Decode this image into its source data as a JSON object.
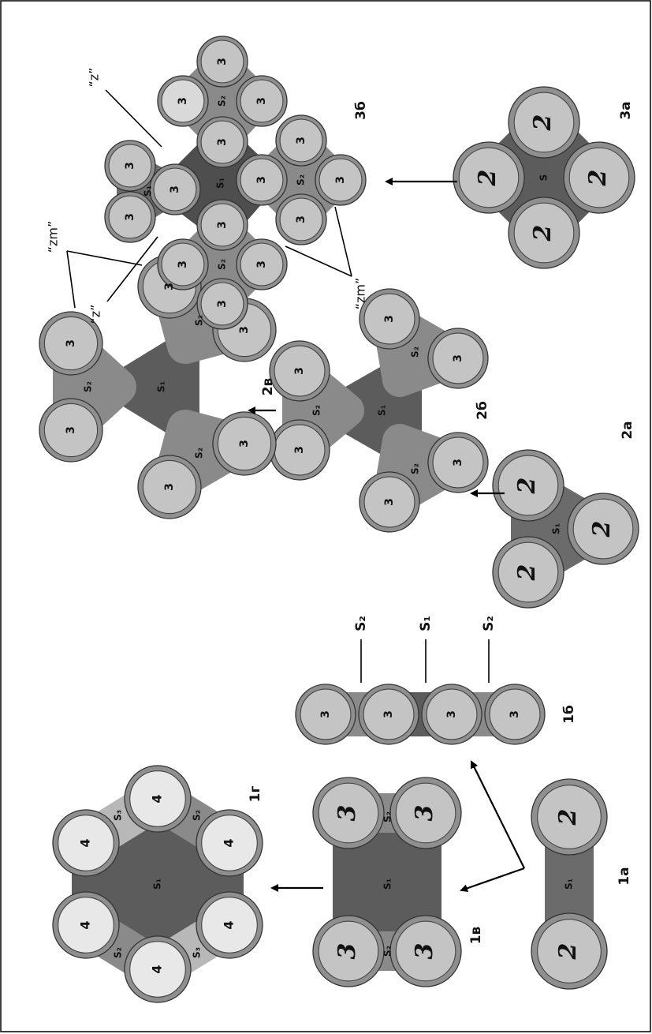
{
  "diagrams": [
    {
      "label": "1а",
      "circles": [
        "2",
        "2"
      ],
      "regions": [
        "S₁"
      ]
    },
    {
      "label": "1б",
      "circles": [
        "3",
        "3",
        "3",
        "3"
      ],
      "regions": [
        "S₂",
        "S₁",
        "S₂"
      ]
    },
    {
      "label": "1в",
      "circles": [
        "3",
        "3",
        "3",
        "3"
      ],
      "regions": [
        "S₂",
        "S₁",
        "S₂"
      ]
    },
    {
      "label": "1г",
      "circles": [
        "4",
        "4",
        "4",
        "4",
        "4",
        "4"
      ],
      "regions": [
        "S₃",
        "S₂",
        "S₁",
        "S₂",
        "S₃"
      ]
    },
    {
      "label": "2а",
      "circles": [
        "2",
        "2",
        "2"
      ],
      "regions": [
        "S₁"
      ]
    },
    {
      "label": "2б",
      "circles": [
        "3",
        "3",
        "3",
        "3",
        "3",
        "3"
      ],
      "regions": [
        "S₂",
        "S₂",
        "S₂",
        "S₁"
      ]
    },
    {
      "label": "2в",
      "circles": [
        "3",
        "3",
        "3",
        "3",
        "3",
        "3"
      ],
      "regions": [
        "S₂",
        "S₂",
        "S₂",
        "S₁"
      ],
      "annotations": [
        "“zm”"
      ]
    },
    {
      "label": "3а",
      "circles": [
        "2",
        "2",
        "2",
        "2"
      ],
      "regions": [
        "S"
      ]
    },
    {
      "label": "3б",
      "circles": [
        "3",
        "3",
        "3",
        "3",
        "3",
        "3",
        "3",
        "3",
        "3",
        "3",
        "3",
        "3",
        "3",
        "3",
        "3"
      ],
      "regions": [
        "S₂",
        "S₂",
        "S₂",
        "S₁",
        "S₁"
      ],
      "annotations": [
        "“z”",
        "“z”",
        "“zm”"
      ]
    }
  ]
}
